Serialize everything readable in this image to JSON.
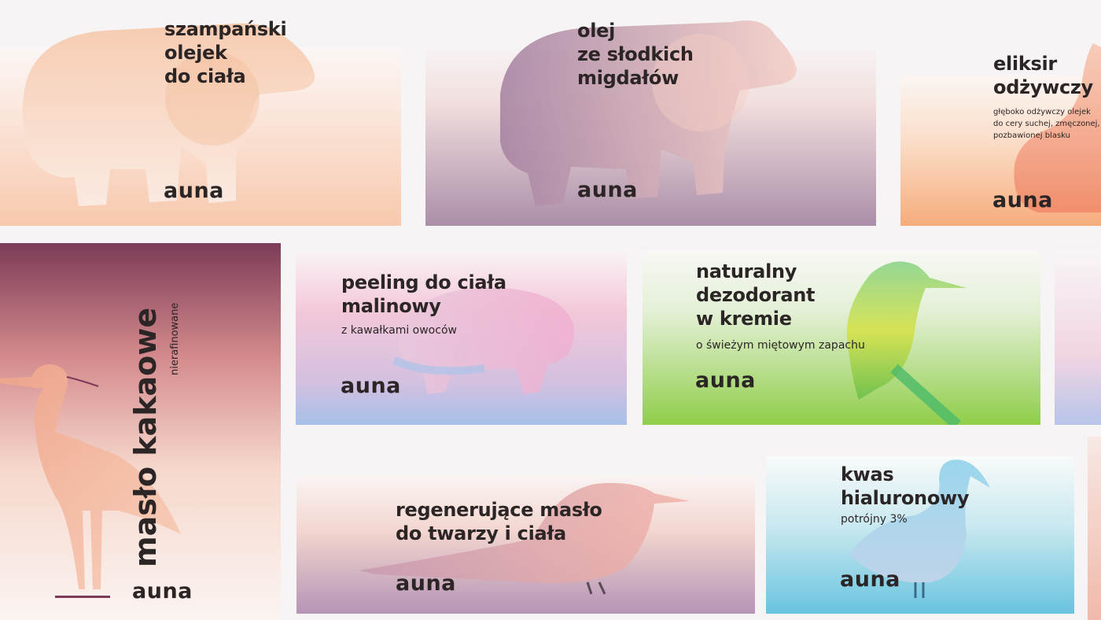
{
  "brand": "auna",
  "cards": {
    "bear1": {
      "title": [
        "szampański",
        "olejek",
        "do ciała"
      ]
    },
    "bear2": {
      "title": [
        "olej",
        "ze słodkich",
        "migdałów"
      ]
    },
    "rabbit": {
      "title": [
        "eliksir",
        "odżywczy"
      ],
      "description": [
        "głęboko odżywczy olejek",
        "do cery suchej, zmęczonej,",
        "pozbawionej blasku"
      ]
    },
    "heron": {
      "title": "masło kakaowe",
      "subtitle": "nierafinowane"
    },
    "hedgehog": {
      "title": [
        "peeling do ciała",
        "malinowy"
      ],
      "subtitle": "z kawałkami owoców"
    },
    "kingfisher": {
      "title": [
        "naturalny",
        "dezodorant",
        "w kremie"
      ],
      "subtitle": "o świeżym miętowym zapachu"
    },
    "sparrow": {
      "title": [
        "regenerujące masło",
        "do twarzy i ciała"
      ]
    },
    "swan": {
      "title": [
        "kwas",
        "hialuronowy"
      ],
      "subtitle": "potrójny 3%"
    }
  },
  "colors": {
    "text": "#2b2526",
    "peach": "#f6c6a9",
    "mauve": "#ad8fa8",
    "orange": "#f5ab7a",
    "plum": "#7a3a56",
    "lavender_blue": "#a9c1e6",
    "green": "#8fce4a",
    "sky_blue": "#6ec8e0"
  }
}
